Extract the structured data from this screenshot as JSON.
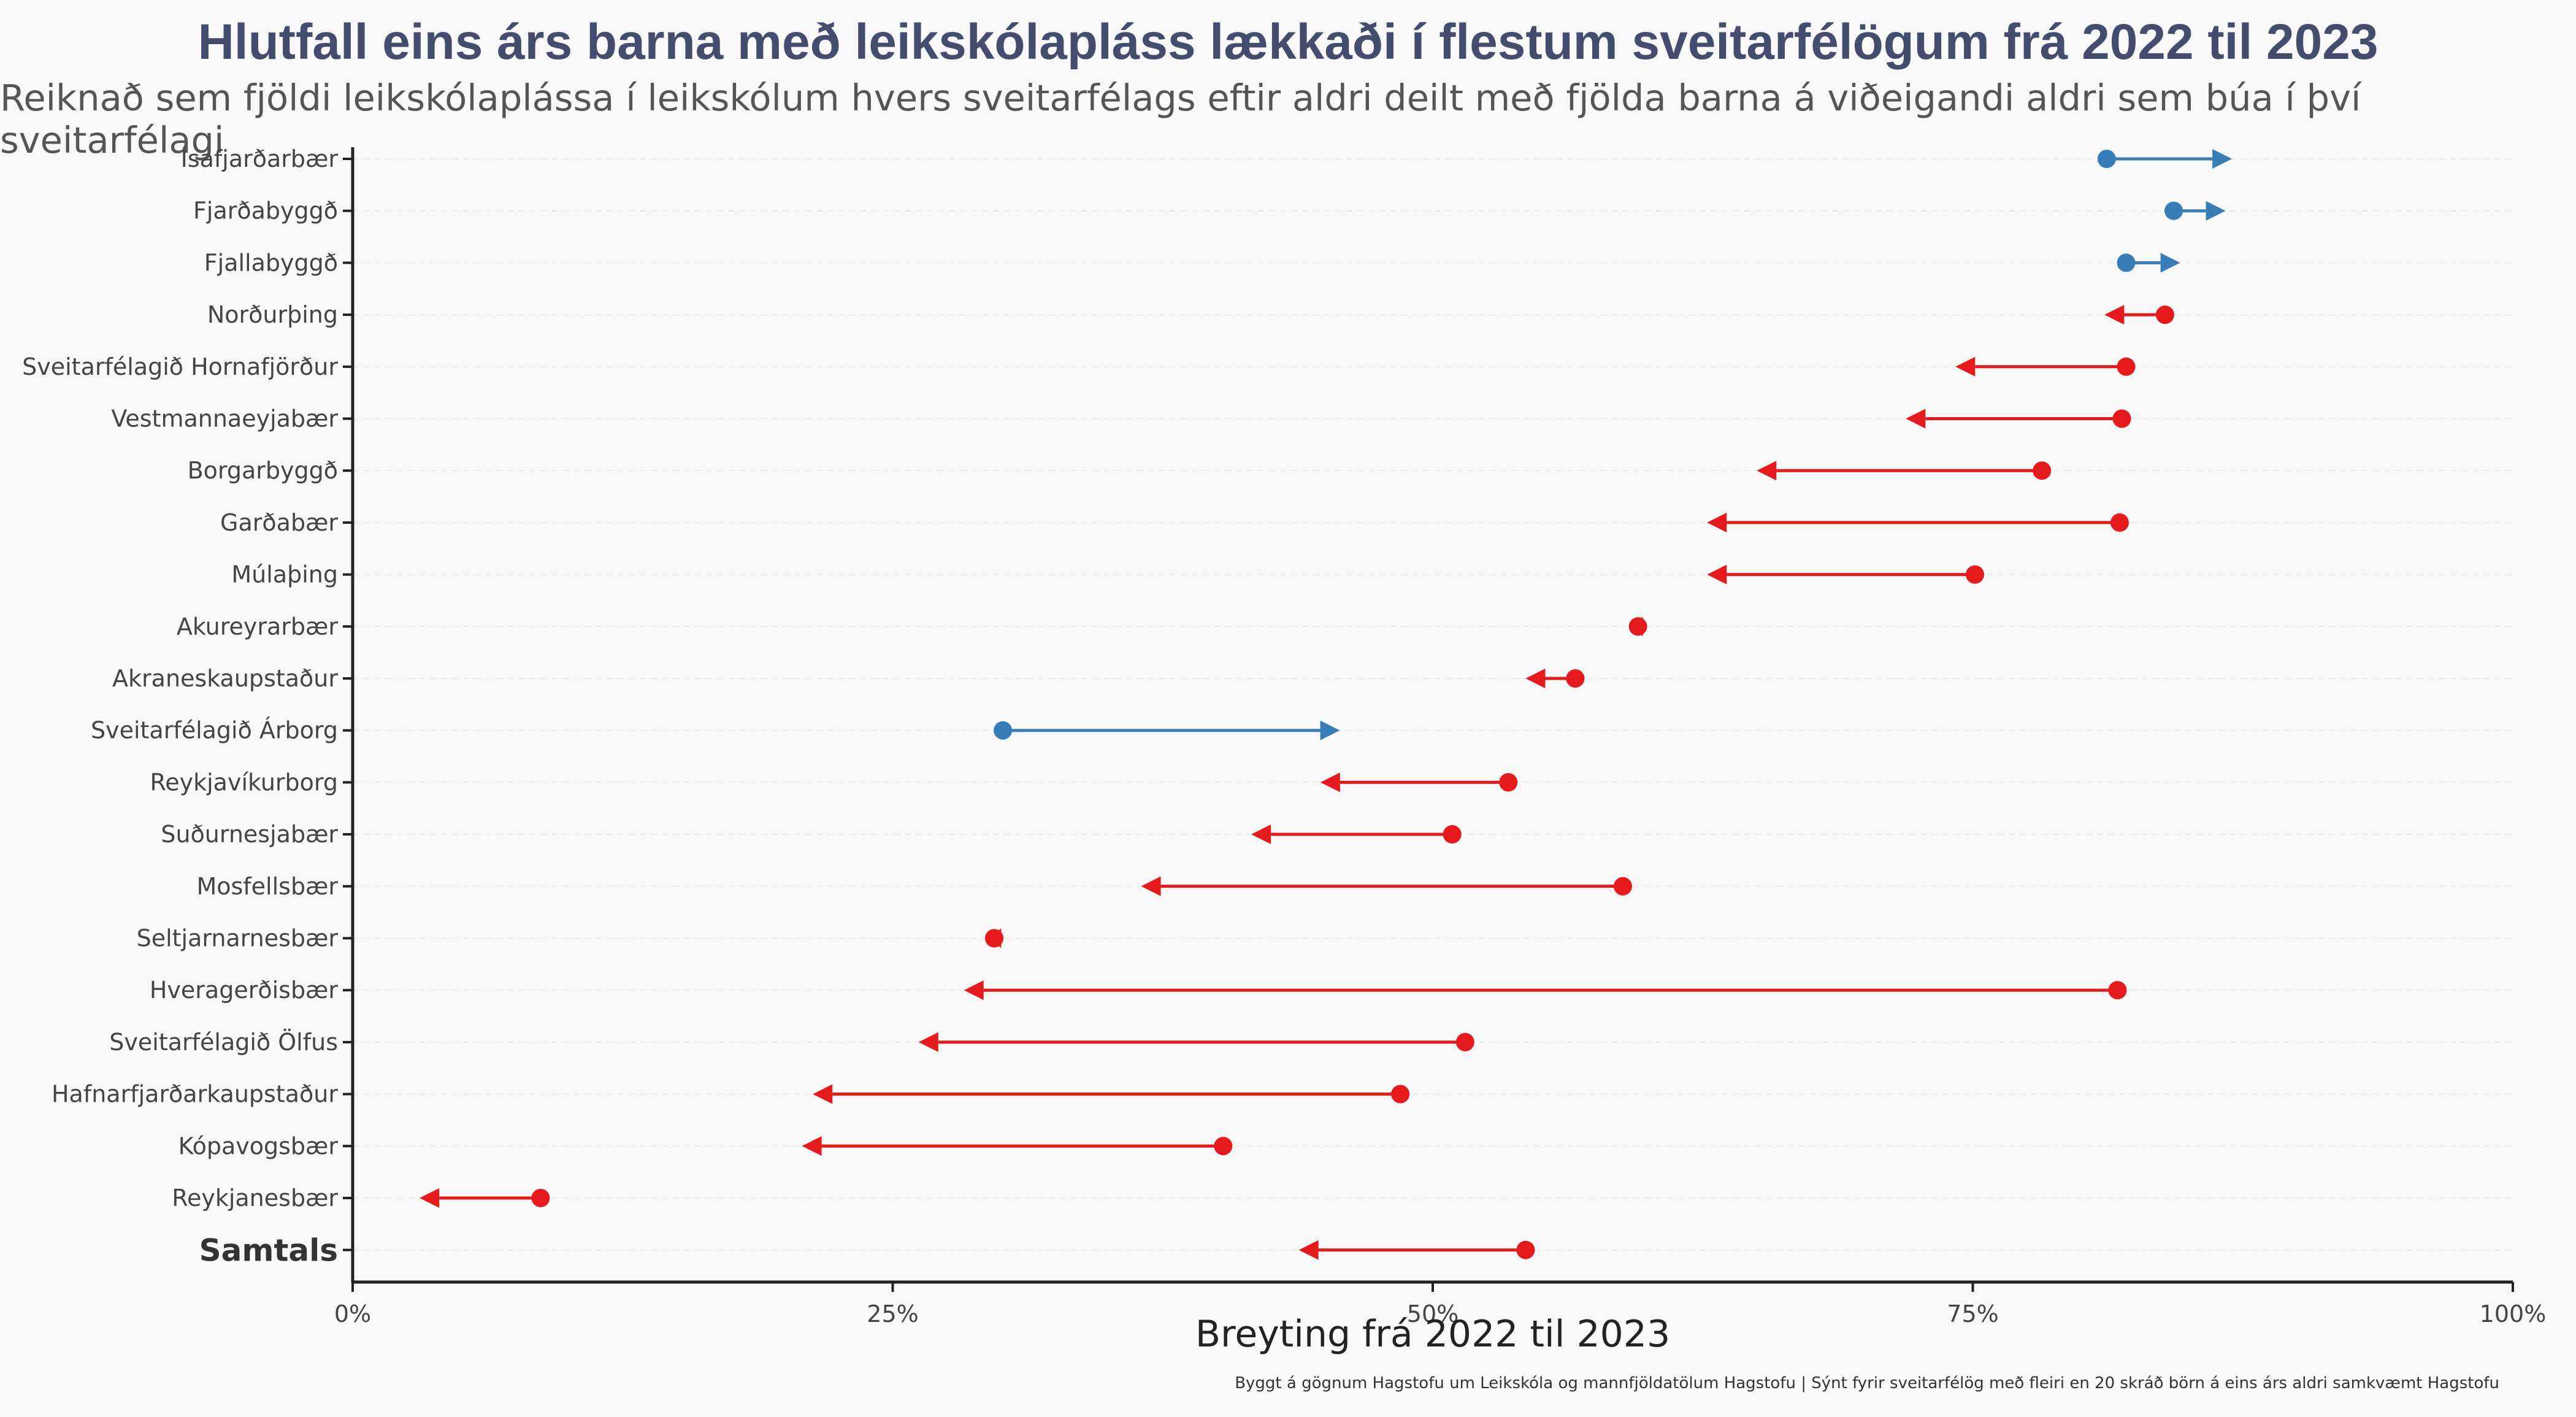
{
  "chart_data": {
    "type": "dumbbell",
    "title": "Hlutfall eins árs barna með leikskólapláss lækkaði í flestum sveitarfélögum frá 2022 til 2023",
    "subtitle": "Reiknað sem fjöldi leikskólaplássa í leikskólum hvers sveitarfélags eftir aldri deilt með fjölda barna á viðeigandi aldri sem búa í því sveitarfélagi",
    "xlabel": "Breyting frá 2022 til 2023",
    "ylabel": "",
    "caption": "Byggt á gögnum Hagstofu um Leikskóla og mannfjöldatölum Hagstofu | Sýnt fyrir sveitarfélög með fleiri en 20 skráð börn á eins árs aldri samkvæmt Hagstofu",
    "xlim": [
      0,
      1
    ],
    "x_ticks": [
      0,
      0.25,
      0.5,
      0.75,
      1
    ],
    "x_tick_labels": [
      "0%",
      "25%",
      "50%",
      "75%",
      "100%"
    ],
    "grid": "horizontal dashed",
    "colors": {
      "increase": "#377eb8",
      "decrease": "#e41a1c"
    },
    "rows": [
      {
        "name": "Ísafjarðarbær",
        "v2022": 0.812,
        "v2023": 0.87,
        "bold": false
      },
      {
        "name": "Fjarðabyggð",
        "v2022": 0.843,
        "v2023": 0.867,
        "bold": false
      },
      {
        "name": "Fjallabyggð",
        "v2022": 0.821,
        "v2023": 0.846,
        "bold": false
      },
      {
        "name": "Norðurþing",
        "v2022": 0.839,
        "v2023": 0.811,
        "bold": false
      },
      {
        "name": "Sveitarfélagið Hornafjörður",
        "v2022": 0.821,
        "v2023": 0.742,
        "bold": false
      },
      {
        "name": "Vestmannaeyjabær",
        "v2022": 0.819,
        "v2023": 0.719,
        "bold": false
      },
      {
        "name": "Borgarbyggð",
        "v2022": 0.782,
        "v2023": 0.65,
        "bold": false
      },
      {
        "name": "Garðabær",
        "v2022": 0.818,
        "v2023": 0.627,
        "bold": false
      },
      {
        "name": "Múlaþing",
        "v2022": 0.751,
        "v2023": 0.627,
        "bold": false
      },
      {
        "name": "Akureyrarbær",
        "v2022": 0.595,
        "v2023": 0.591,
        "bold": false
      },
      {
        "name": "Akraneskaupstaður",
        "v2022": 0.566,
        "v2023": 0.543,
        "bold": false
      },
      {
        "name": "Sveitarfélagið Árborg",
        "v2022": 0.301,
        "v2023": 0.457,
        "bold": false
      },
      {
        "name": "Reykjavíkurborg",
        "v2022": 0.535,
        "v2023": 0.448,
        "bold": false
      },
      {
        "name": "Suðurnesjabær",
        "v2022": 0.509,
        "v2023": 0.416,
        "bold": false
      },
      {
        "name": "Mosfellsbær",
        "v2022": 0.588,
        "v2023": 0.365,
        "bold": false
      },
      {
        "name": "Seltjarnarnesbær",
        "v2022": 0.297,
        "v2023": 0.294,
        "bold": false
      },
      {
        "name": "Hveragerðisbær",
        "v2022": 0.817,
        "v2023": 0.283,
        "bold": false
      },
      {
        "name": "Sveitarfélagið Ölfus",
        "v2022": 0.515,
        "v2023": 0.262,
        "bold": false
      },
      {
        "name": "Hafnarfjarðarkaupstaður",
        "v2022": 0.485,
        "v2023": 0.213,
        "bold": false
      },
      {
        "name": "Kópavogsbær",
        "v2022": 0.403,
        "v2023": 0.208,
        "bold": false
      },
      {
        "name": "Reykjanesbær",
        "v2022": 0.087,
        "v2023": 0.031,
        "bold": false
      },
      {
        "name": "Samtals",
        "v2022": 0.543,
        "v2023": 0.438,
        "bold": true
      }
    ]
  }
}
